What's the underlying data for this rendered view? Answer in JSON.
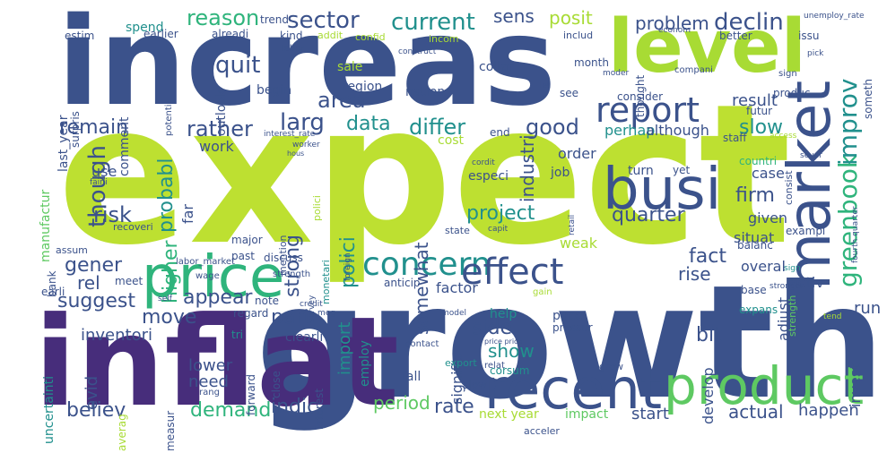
{
  "word_cloud": {
    "palette": {
      "lime": "#bde031",
      "yellow_green": "#a8db34",
      "green": "#5ec962",
      "teal_green": "#2fb47c",
      "teal": "#21908d",
      "blue_teal": "#2c728e",
      "steel_blue": "#3b528b",
      "indigo": "#472d7b",
      "dark_purple": "#440154"
    },
    "words": {
      "expect": "expect",
      "growth": "growth",
      "increas": "increas",
      "inflat": "inflat",
      "level": "level",
      "busi": "busi",
      "market": "market",
      "price": "price",
      "recent": "recent",
      "product": "product",
      "concern": "concern",
      "effect": "effect",
      "report": "report",
      "greenbook": "greenbook",
      "improv": "improv",
      "sector": "sector",
      "current": "current",
      "declin": "declin",
      "reason": "reason",
      "sens": "sens",
      "posit": "posit",
      "problem": "problem",
      "though": "though",
      "quit": "quit",
      "larg": "larg",
      "rather": "rather",
      "area": "area",
      "data": "data",
      "differ": "differ",
      "good": "good",
      "industri": "industri",
      "remain": "remain",
      "probabl": "probabl",
      "higher": "higher",
      "risk": "risk",
      "strong": "strong",
      "polici": "polici",
      "project": "project",
      "somewhat": "somewhat",
      "quarter": "quarter",
      "slow": "slow",
      "fact": "fact",
      "firm": "firm",
      "rise": "rise",
      "gener": "gener",
      "rel": "rel",
      "suggest": "suggest",
      "move": "move",
      "appear": "appear",
      "part": "part",
      "side": "side",
      "show": "show",
      "bit": "bit",
      "rate": "rate",
      "period": "period",
      "indic": "indic",
      "demand": "demand",
      "believ": "believ",
      "actual": "actual",
      "happen": "happen",
      "start": "start",
      "inventori": "inventori",
      "lower": "lower",
      "need": "need",
      "evid": "evid",
      "uncertainti": "uncertainti",
      "manufactur": "manufactur",
      "last_year": "last_year",
      "comment": "comment",
      "outlook": "outlook",
      "result": "result",
      "perhap": "perhap",
      "although": "although",
      "work": "work",
      "far": "far",
      "use": "use",
      "order": "order",
      "weak": "weak",
      "import": "import",
      "employ": "employ",
      "factor": "factor",
      "signific": "signific",
      "adjust": "adjust",
      "invest": "invest",
      "develop": "develop",
      "run": "run",
      "activ": "activ",
      "overal": "overal",
      "given": "given",
      "situat": "situat",
      "case": "case",
      "turn": "turn",
      "yet": "yet",
      "job": "job",
      "especi": "especi",
      "region": "region",
      "nation": "nation",
      "begin": "begin",
      "sale": "sale",
      "spend": "spend",
      "trend": "trend",
      "kind": "kind",
      "addit": "addit",
      "confid": "confid",
      "incom": "incom",
      "collar": "collar",
      "month": "month",
      "includ": "includ",
      "better": "better",
      "issu": "issu",
      "someth": "someth",
      "consider": "consider",
      "see": "see",
      "produc": "produc",
      "futur": "futur",
      "staff": "staff",
      "consist": "consist",
      "countri": "countri",
      "exampl": "exampl",
      "balanc": "balanc",
      "base": "base",
      "stronger": "stronger",
      "strength": "strength",
      "expans": "expans",
      "pace": "pace",
      "help": "help",
      "grow": "grow",
      "impact": "impact",
      "next_year": "next year",
      "accelor": "acceler",
      "corsum": "corsum",
      "relat": "relat",
      "fall": "fall",
      "slow_small": "slow",
      "export": "export",
      "contact": "contact",
      "pressur": "pressur",
      "price_price": "price price",
      "model": "model",
      "gain": "gain",
      "anticip": "anticip",
      "interest": "interest",
      "close": "close",
      "forward": "forward",
      "clearli": "clearli",
      "regard": "regard",
      "note": "note",
      "meg": "meg",
      "credit": "credit",
      "survey": "survey",
      "monetari": "monetari",
      "polici_small": "polici",
      "discuss": "discuss",
      "strength_small": "strength",
      "major": "major",
      "past": "past",
      "labor_market": "labor_market",
      "bank": "bank",
      "assum": "assum",
      "recoveri": "recoveri",
      "meet": "meet",
      "wage": "wage",
      "earli": "earli",
      "measur": "measur",
      "averag": "averag",
      "rang": "rang",
      "tri": "tri",
      "mention": "mention",
      "interest_rate": "interest_rate",
      "worker": "worker",
      "hous": "hous",
      "state": "state",
      "capit": "capit",
      "retail": "retail",
      "foreign": "foreign",
      "cordit": "cordit",
      "estim": "estim",
      "surpris": "surpris",
      "potenti": "potenti",
      "earlier": "earlier",
      "alreadi": "alreadi",
      "labor": "labor",
      "construct": "construct",
      "econom": "econom",
      "unemploy_rate": "unemploy_rate",
      "pick": "pick",
      "sign": "sign",
      "compani": "compani",
      "moder": "moder",
      "thought": "thought",
      "let": "let",
      "sever": "sever",
      "fourth_quarter": "fourth quarter",
      "cost": "cost",
      "end": "end",
      "access": "access",
      "tend": "tend",
      "fairli": "fairli",
      "self": "self",
      "sign_small": "sign"
    }
  }
}
